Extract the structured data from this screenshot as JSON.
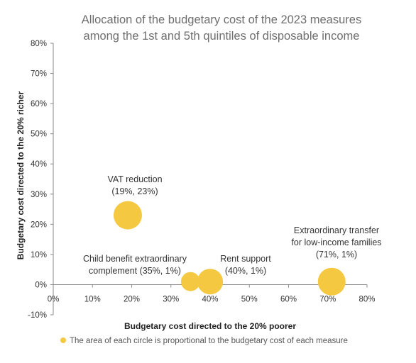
{
  "chart_data": {
    "type": "scatter",
    "variant": "bubble",
    "title_lines": [
      "Allocation of the budgetary cost of the 2023 measures",
      "among the 1st and 5th quintiles of disposable income"
    ],
    "xlabel": "Budgetary cost directed to the 20% poorer",
    "ylabel": "Budgetary cost directed to the 20% richer",
    "x_unit": "%",
    "y_unit": "%",
    "xlim": [
      0,
      80
    ],
    "ylim": [
      -10,
      80
    ],
    "x_ticks": [
      0,
      10,
      20,
      30,
      40,
      50,
      60,
      70,
      80
    ],
    "y_ticks": [
      -10,
      0,
      10,
      20,
      30,
      40,
      50,
      60,
      70,
      80
    ],
    "x_tick_labels": [
      "0%",
      "10%",
      "20%",
      "30%",
      "40%",
      "50%",
      "60%",
      "70%",
      "80%"
    ],
    "y_tick_labels": [
      "-10%",
      "0%",
      "10%",
      "20%",
      "30%",
      "40%",
      "50%",
      "60%",
      "70%",
      "80%"
    ],
    "grid": false,
    "marker_color": "#f5c842",
    "points": [
      {
        "x": 19,
        "y": 23,
        "relative_size": 1.0,
        "label_lines": [
          "VAT reduction",
          "(19%, 23%)"
        ]
      },
      {
        "x": 35,
        "y": 1,
        "relative_size": 0.45,
        "label_lines": [
          "Child benefit extraordinary",
          "complement (35%, 1%)"
        ]
      },
      {
        "x": 40,
        "y": 1,
        "relative_size": 0.82,
        "label_lines": [
          "Rent support",
          "(40%, 1%)"
        ]
      },
      {
        "x": 71,
        "y": 1,
        "relative_size": 0.95,
        "label_lines": [
          "Extraordinary transfer",
          "for low-income families",
          "(71%, 1%)"
        ]
      }
    ],
    "legend": {
      "position": "bottom",
      "text": "The area of each circle is proportional to the budgetary cost of each measure"
    }
  }
}
